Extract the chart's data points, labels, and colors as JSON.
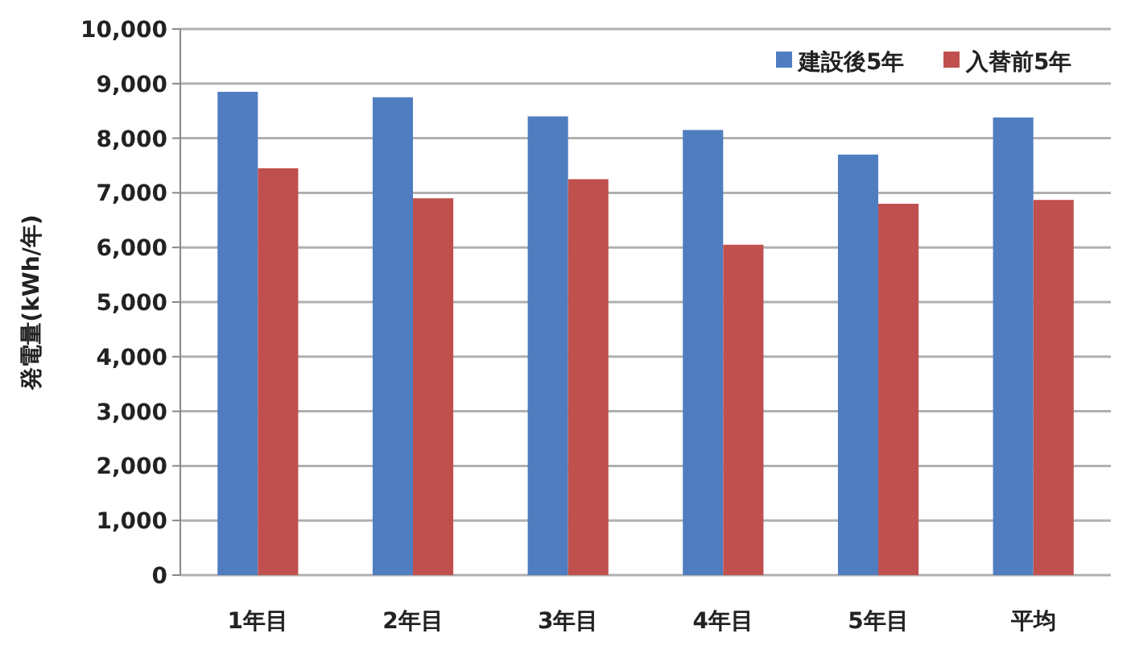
{
  "chart_data": {
    "type": "bar",
    "ylabel": "発電量(kWh/年)",
    "categories": [
      "1年目",
      "2年目",
      "3年目",
      "4年目",
      "5年目",
      "平均"
    ],
    "series": [
      {
        "name": "建設後5年",
        "color": "#4f7dc0",
        "values": [
          8850,
          8750,
          8400,
          8150,
          7700,
          8380
        ]
      },
      {
        "name": "入替前5年",
        "color": "#c0504d",
        "values": [
          7450,
          6900,
          7250,
          6050,
          6800,
          6870
        ]
      }
    ],
    "ylim": [
      0,
      10000
    ],
    "yticks": [
      0,
      {
        "value": 1000,
        "label": "1,000"
      },
      {
        "value": 2000,
        "label": "2,000"
      },
      {
        "value": 3000,
        "label": "3,000"
      },
      {
        "value": 4000,
        "label": "4,000"
      },
      {
        "value": 5000,
        "label": "5,000"
      },
      {
        "value": 6000,
        "label": "6,000"
      },
      {
        "value": 7000,
        "label": "7,000"
      },
      {
        "value": 8000,
        "label": "8,000"
      },
      {
        "value": 9000,
        "label": "9,000"
      },
      {
        "value": 10000,
        "label": "10,000"
      }
    ],
    "grid": "y",
    "legend": "top right"
  }
}
